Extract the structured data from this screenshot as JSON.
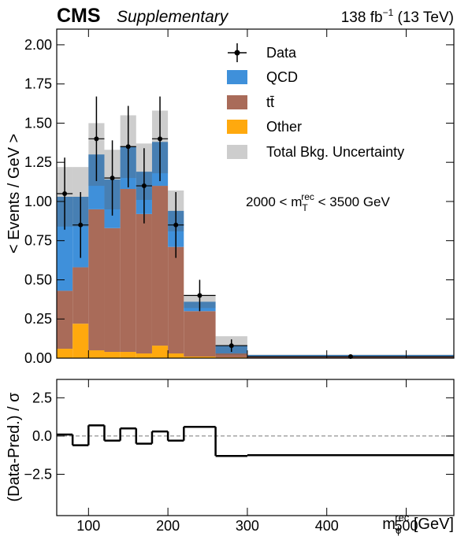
{
  "chart_data": {
    "type": "stacked-histogram",
    "experiment": "CMS",
    "label": "Supplementary",
    "luminosity": [
      "138 fb",
      "−1",
      " (13 TeV)"
    ],
    "ylabel": "< Events / GeV >",
    "annotation": [
      "2000 < m",
      "T",
      "rec",
      " < 3500 GeV"
    ],
    "bins": [
      60,
      80,
      100,
      120,
      140,
      160,
      180,
      200,
      220,
      260,
      300,
      560
    ],
    "series": [
      {
        "name": "Other",
        "color": "#ffa90e",
        "values": [
          0.06,
          0.22,
          0.05,
          0.04,
          0.04,
          0.03,
          0.08,
          0.03,
          0.01,
          0.005,
          0.002
        ]
      },
      {
        "name": "tt̄",
        "color": "#a96b59",
        "values": [
          0.37,
          0.36,
          0.9,
          0.79,
          1.04,
          0.89,
          1.02,
          0.68,
          0.29,
          0.025,
          0.008
        ]
      },
      {
        "name": "QCD",
        "color": "#3f90da",
        "values": [
          0.6,
          0.45,
          0.35,
          0.31,
          0.27,
          0.27,
          0.28,
          0.23,
          0.06,
          0.05,
          0.01
        ]
      }
    ],
    "uncertainty": {
      "name": "Total Bkg. Uncertainty",
      "color": "rgba(90,90,90,0.3)",
      "values": [
        0.19,
        0.19,
        0.2,
        0.19,
        0.2,
        0.18,
        0.2,
        0.13,
        0.04,
        0.06,
        0.003
      ]
    },
    "data": {
      "name": "Data",
      "color": "#000000",
      "values": [
        1.05,
        0.85,
        1.4,
        1.15,
        1.35,
        1.1,
        1.4,
        0.85,
        0.4,
        0.08,
        0.01
      ],
      "errors": [
        0.23,
        0.21,
        0.27,
        0.24,
        0.26,
        0.24,
        0.27,
        0.21,
        0.1,
        0.04,
        0.004
      ]
    },
    "xlim": [
      60,
      560
    ],
    "xticks": [
      100,
      200,
      300,
      400,
      500
    ],
    "ylim": [
      0,
      2.1
    ],
    "yticks": [
      {
        "value": 0,
        "label": "0.00"
      },
      {
        "value": 0.25,
        "label": "0.25"
      },
      {
        "value": 0.5,
        "label": "0.50"
      },
      {
        "value": 0.75,
        "label": "0.75"
      },
      {
        "value": 1,
        "label": "1.00"
      },
      {
        "value": 1.25,
        "label": "1.25"
      },
      {
        "value": 1.5,
        "label": "1.50"
      },
      {
        "value": 1.75,
        "label": "1.75"
      },
      {
        "value": 2,
        "label": "2.00"
      }
    ],
    "ratio": {
      "ylabel": "(Data-Pred.) / σ",
      "values": [
        0.1,
        -0.6,
        0.7,
        -0.3,
        0.5,
        -0.5,
        0.3,
        -0.3,
        0.6,
        -1.3,
        -1.25
      ],
      "ylim": [
        -5.2,
        3.7
      ],
      "yticks": [
        {
          "value": -2.5,
          "label": "−2.5"
        },
        {
          "value": 0,
          "label": "0.0"
        },
        2.5
      ]
    },
    "xlabel": [
      "m",
      "ϕ",
      "rec",
      " [GeV]"
    ],
    "legend": "upper right"
  }
}
